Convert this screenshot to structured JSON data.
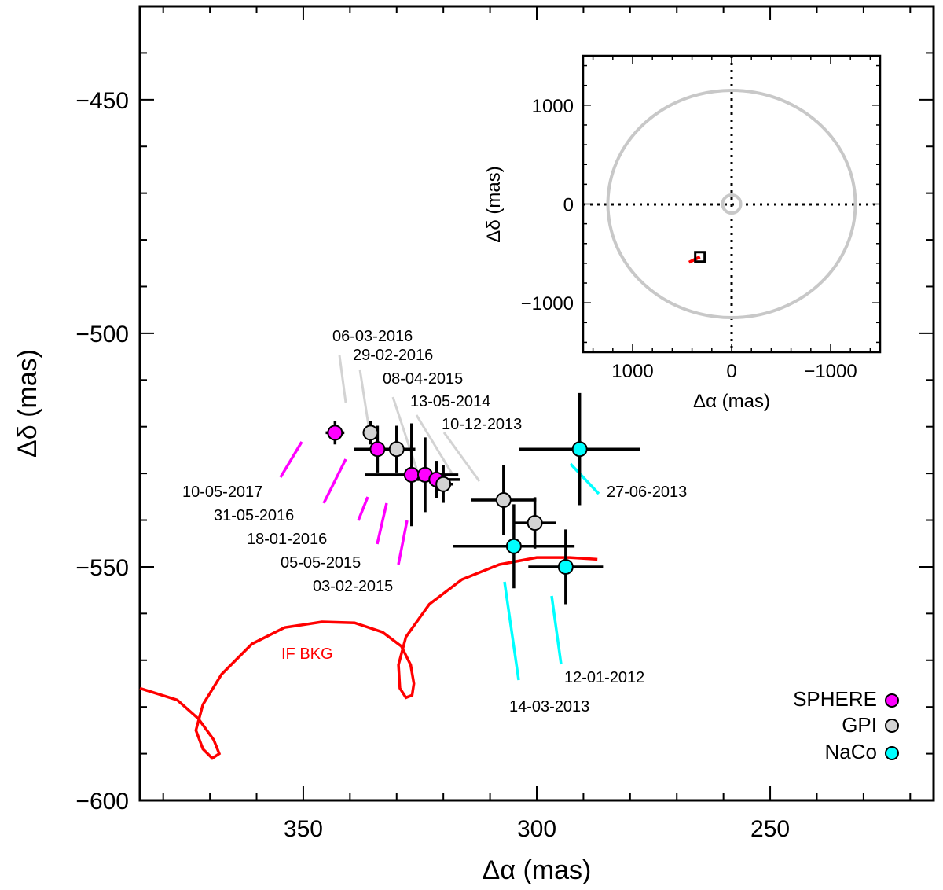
{
  "chart_data": {
    "type": "scatter",
    "xlabel": "Δα (mas)",
    "ylabel": "Δδ (mas)",
    "xlim": [
      385,
      215
    ],
    "ylim": [
      -600,
      -430
    ],
    "x_ticks": [
      350,
      300,
      250
    ],
    "y_ticks": [
      -450,
      -500,
      -550,
      -600
    ],
    "x_tick_labels": [
      "350",
      "300",
      "250"
    ],
    "y_tick_labels": [
      "−450",
      "−500",
      "−550",
      "−600"
    ],
    "series": [
      {
        "name": "SPHERE",
        "color": "#ff00ff",
        "points": [
          {
            "date": "10-05-2017",
            "x": 343.2,
            "y": -521.3,
            "xerr": 2.0,
            "yerr": 2.5
          },
          {
            "date": "31-05-2016",
            "x": 334.1,
            "y": -524.8,
            "xerr": 5.0,
            "yerr": 5.0
          },
          {
            "date": "18-01-2016",
            "x": 326.8,
            "y": -530.3,
            "xerr": 10.0,
            "yerr": 11.0
          },
          {
            "date": "05-05-2015",
            "x": 323.9,
            "y": -530.3,
            "xerr": 3.0,
            "yerr": 8.0
          },
          {
            "date": "03-02-2015",
            "x": 321.5,
            "y": -531.3,
            "xerr": 5.0,
            "yerr": 4.0
          }
        ]
      },
      {
        "name": "GPI",
        "color": "#d3d3d3",
        "points": [
          {
            "date": "06-03-2016",
            "x": 335.6,
            "y": -521.3,
            "xerr": 1.5,
            "yerr": 2.5
          },
          {
            "date": "29-02-2016",
            "x": 330.0,
            "y": -524.8,
            "xerr": 4.0,
            "yerr": 5.0
          },
          {
            "date": "08-04-2015",
            "x": 320.0,
            "y": -532.3,
            "xerr": 2.0,
            "yerr": 4.0
          },
          {
            "date": "13-05-2014",
            "x": 307.1,
            "y": -535.7,
            "xerr": 7.0,
            "yerr": 7.5
          },
          {
            "date": "10-12-2013",
            "x": 300.4,
            "y": -540.6,
            "xerr": 4.5,
            "yerr": 5.5
          }
        ]
      },
      {
        "name": "NaCo",
        "color": "#00ffff",
        "points": [
          {
            "date": "27-06-2013",
            "x": 290.8,
            "y": -524.8,
            "xerr": 13.0,
            "yerr": 12.0
          },
          {
            "date": "14-03-2013",
            "x": 304.9,
            "y": -545.6,
            "xerr": 13.0,
            "yerr": 9.0
          },
          {
            "date": "12-01-2012",
            "x": 293.8,
            "y": -550.0,
            "xerr": 8.0,
            "yerr": 8.0
          }
        ]
      }
    ],
    "background_track": {
      "label": "IF BKG",
      "color": "#ff0000",
      "points": [
        [
          385.0,
          -576.0
        ],
        [
          377.0,
          -578.5
        ],
        [
          372.5,
          -582.5
        ],
        [
          369.2,
          -587.0
        ],
        [
          368.0,
          -590.0
        ],
        [
          369.5,
          -591.0
        ],
        [
          371.5,
          -589.0
        ],
        [
          373.0,
          -585.0
        ],
        [
          371.5,
          -579.5
        ],
        [
          367.5,
          -573.0
        ],
        [
          361.0,
          -566.5
        ],
        [
          354.0,
          -563.0
        ],
        [
          346.0,
          -561.8
        ],
        [
          339.0,
          -562.0
        ],
        [
          333.0,
          -564.0
        ],
        [
          329.0,
          -567.0
        ],
        [
          327.0,
          -571.0
        ],
        [
          326.3,
          -575.0
        ],
        [
          326.7,
          -577.5
        ],
        [
          328.0,
          -578.0
        ],
        [
          329.3,
          -576.0
        ],
        [
          329.6,
          -571.0
        ],
        [
          328.0,
          -565.0
        ],
        [
          323.0,
          -558.0
        ],
        [
          316.0,
          -552.7
        ],
        [
          308.0,
          -549.5
        ],
        [
          300.0,
          -548.0
        ],
        [
          293.0,
          -548.0
        ],
        [
          287.0,
          -548.4
        ]
      ]
    },
    "legend": {
      "position": "bottom-right",
      "entries": [
        {
          "name": "SPHERE",
          "color": "#ff00ff"
        },
        {
          "name": "GPI",
          "color": "#d3d3d3"
        },
        {
          "name": "NaCo",
          "color": "#00ffff"
        }
      ]
    },
    "inset": {
      "xlabel": "Δα (mas)",
      "ylabel": "Δδ (mas)",
      "xlim": [
        1500,
        -1500
      ],
      "ylim": [
        -1500,
        1500
      ],
      "x_tick_labels": [
        "1000",
        "0",
        "−1000"
      ],
      "y_tick_labels": [
        "1000",
        "0",
        "−1000"
      ],
      "x_ticks": [
        1000,
        0,
        -1000
      ],
      "y_ticks": [
        1000,
        0,
        -1000
      ],
      "orbit_outer_rx": 1250,
      "orbit_outer_ry": 1150,
      "orbit_inner_r": 60,
      "object": {
        "x": 320,
        "y": -535
      },
      "track_end": {
        "x": 430,
        "y": -590
      }
    }
  }
}
